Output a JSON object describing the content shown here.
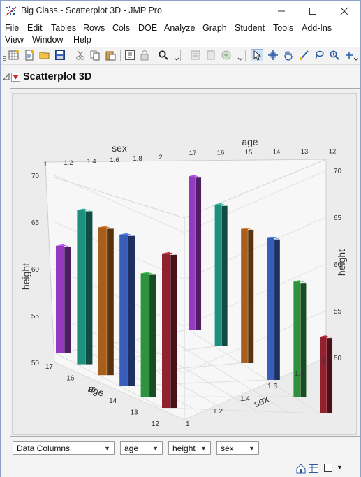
{
  "window": {
    "title": "Big Class - Scatterplot 3D - JMP Pro"
  },
  "menu": [
    "File",
    "Edit",
    "Tables",
    "Rows",
    "Cols",
    "DOE",
    "Analyze",
    "Graph",
    "Student",
    "Tools",
    "Add-Ins",
    "View",
    "Window",
    "Help"
  ],
  "toolbar_icons": [
    "new-data-table-icon",
    "new-script-icon",
    "open-icon",
    "save-icon",
    "cut-icon",
    "copy-icon",
    "paste-icon",
    "run-script-icon",
    "lock-icon",
    "search-icon",
    "arrow-tool-icon",
    "crosshair-tool-icon",
    "hand-tool-icon",
    "brush-tool-icon",
    "lasso-tool-icon",
    "zoom-tool-icon",
    "annotate-tool-icon"
  ],
  "report": {
    "title": "Scatterplot 3D"
  },
  "controls": {
    "data_columns": "Data Columns",
    "x": "age",
    "y": "height",
    "z": "sex"
  },
  "chart_data": {
    "type": "bar",
    "subtype": "3d-scatterplot-needle-bars",
    "axes": {
      "age": {
        "ticks": [
          "12",
          "13",
          "14",
          "15",
          "16",
          "17"
        ],
        "range": [
          12,
          17
        ]
      },
      "sex": {
        "ticks": [
          "1",
          "1.2",
          "1.4",
          "1.6",
          "1.8",
          "2"
        ],
        "range": [
          1,
          2
        ]
      },
      "height": {
        "ticks": [
          "50",
          "55",
          "60",
          "65",
          "70"
        ],
        "range": [
          50,
          70
        ]
      }
    },
    "axis_labels": {
      "age": "age",
      "sex": "sex",
      "height": "height"
    },
    "colors": {
      "purple": "#8e36b8",
      "teal": "#1d8a78",
      "brown": "#a15a1a",
      "blue": "#3458b0",
      "green": "#2c8c3c",
      "maroon": "#8a1f2c"
    },
    "bars": [
      {
        "sex": 1,
        "age": 17,
        "height": 61.5,
        "color": "#8e36b8"
      },
      {
        "sex": 1,
        "age": 16,
        "height": 66.5,
        "color": "#1d8a78"
      },
      {
        "sex": 1,
        "age": 15,
        "height": 65.8,
        "color": "#a15a1a"
      },
      {
        "sex": 1,
        "age": 14,
        "height": 66.2,
        "color": "#3458b0"
      },
      {
        "sex": 1,
        "age": 13,
        "height": 63.2,
        "color": "#2c8c3c"
      },
      {
        "sex": 1,
        "age": 12,
        "height": 66.5,
        "color": "#8a1f2c"
      },
      {
        "sex": 2,
        "age": 17,
        "height": 70.0,
        "color": "#8e36b8"
      },
      {
        "sex": 2,
        "age": 16,
        "height": 68.5,
        "color": "#1d8a78"
      },
      {
        "sex": 2,
        "age": 15,
        "height": 67.5,
        "color": "#a15a1a"
      },
      {
        "sex": 2,
        "age": 14,
        "height": 68.5,
        "color": "#3458b0"
      },
      {
        "sex": 2,
        "age": 13,
        "height": 65.0,
        "color": "#2c8c3c"
      },
      {
        "sex": 2,
        "age": 12,
        "height": 60.0,
        "color": "#8a1f2c"
      }
    ]
  }
}
